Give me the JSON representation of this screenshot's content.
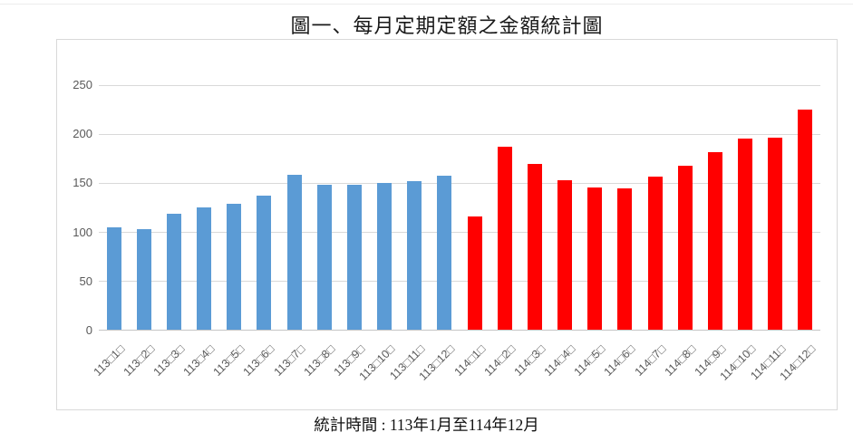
{
  "page": {
    "title": "圖一、每月定期定額之金額統計圖",
    "caption": "統計時間 : 113年1月至114年12月"
  },
  "colors": {
    "series_113": "#5B9BD5",
    "series_114": "#FF0000",
    "gridline": "#D9D9D9",
    "axis_line": "#C6C6C6",
    "tick_text": "#595959",
    "chart_border": "#D9D9D9"
  },
  "chart_data": {
    "type": "bar",
    "title": "圖一、每月定期定額之金額統計圖",
    "categories": [
      "113□1□",
      "113□2□",
      "113□3□",
      "113□4□",
      "113□5□",
      "113□6□",
      "113□7□",
      "113□8□",
      "113□9□",
      "113□10□",
      "113□11□",
      "113□12□",
      "114□1□",
      "114□2□",
      "114□3□",
      "114□4□",
      "114□5□",
      "114□6□",
      "114□7□",
      "114□8□",
      "114□9□",
      "114□10□",
      "114□11□",
      "114□12□"
    ],
    "series": [
      {
        "name": "113",
        "color": "#5B9BD5",
        "values": [
          104,
          102,
          118,
          125,
          128,
          137,
          158,
          148,
          148,
          149,
          151,
          157
        ]
      },
      {
        "name": "114",
        "color": "#FF0000",
        "values": [
          115,
          186,
          169,
          152,
          145,
          144,
          156,
          167,
          181,
          195,
          196,
          224
        ]
      }
    ],
    "xlabel": "",
    "ylabel": "",
    "ylim": [
      0,
      250
    ],
    "yticks": [
      0,
      50,
      100,
      150,
      200,
      250
    ],
    "grid": true,
    "legend": false,
    "note": "統計時間 : 113年1月至114年12月"
  }
}
